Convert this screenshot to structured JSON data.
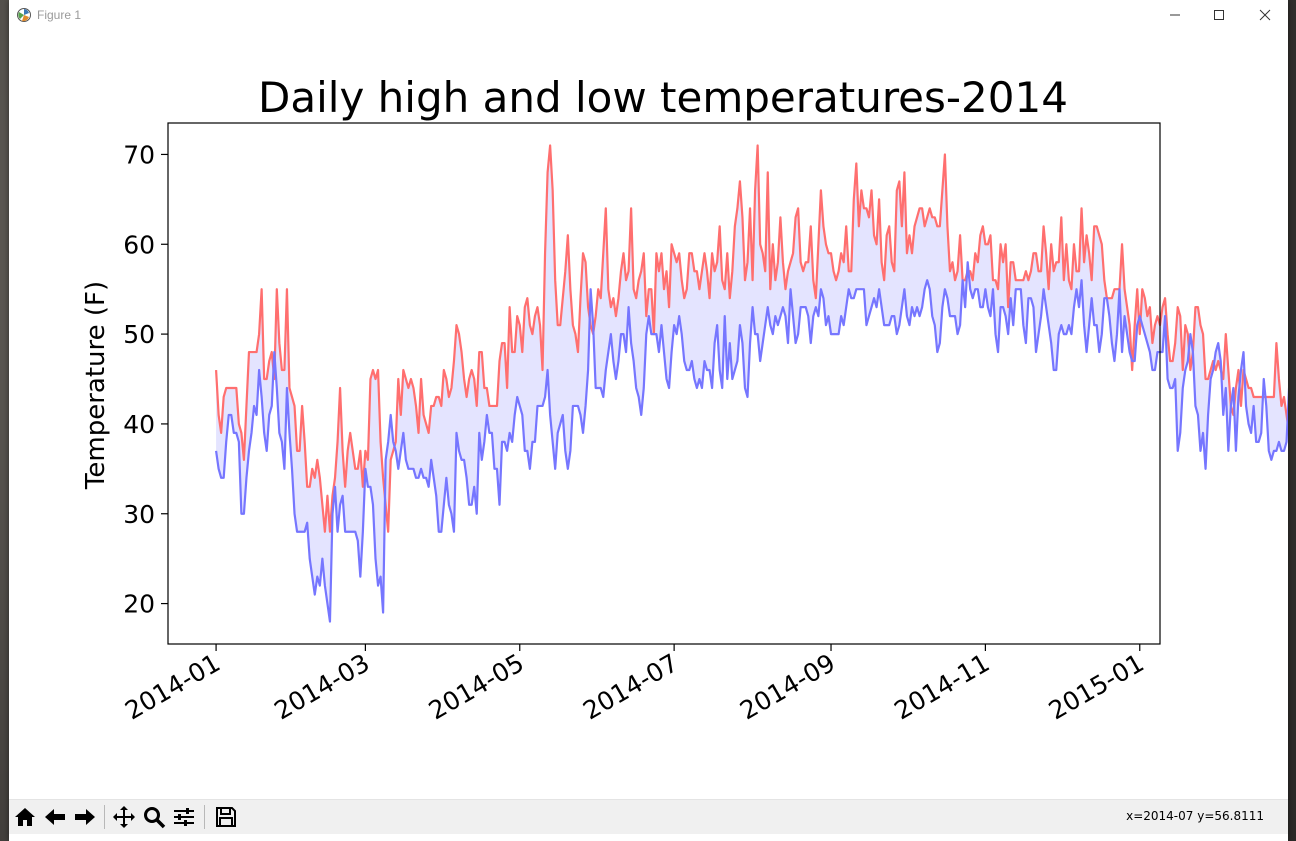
{
  "window": {
    "title": "Figure 1",
    "icons": [
      "app-icon",
      "minimize-icon",
      "maximize-icon",
      "close-icon"
    ]
  },
  "toolbar": {
    "buttons": [
      "home-icon",
      "back-icon",
      "forward-icon",
      "pan-icon",
      "zoom-icon",
      "configure-subplots-icon",
      "save-icon"
    ],
    "coords": "x=2014-07 y=56.8111"
  },
  "colors": {
    "high": "#ff6f6f",
    "low": "#7676ff",
    "fill": "#e4e4ff"
  },
  "chart_data": {
    "type": "line",
    "title": "Daily high and low temperatures-2014",
    "xlabel": "",
    "ylabel": "Temperature (F)",
    "x_tick_labels": [
      "2014-01",
      "2014-03",
      "2014-05",
      "2014-07",
      "2014-09",
      "2014-11",
      "2015-01"
    ],
    "y_ticks": [
      20,
      30,
      40,
      50,
      60,
      70
    ],
    "ylim": [
      15.5,
      73.5
    ],
    "xlim": [
      "2013-12-13",
      "2015-01-09"
    ],
    "grid": false,
    "fill_between": true,
    "series": [
      {
        "x_start": "2014-01-01",
        "values": [
          46,
          41,
          39,
          43,
          44,
          44,
          44,
          44,
          44,
          40,
          39,
          36,
          42,
          48,
          48,
          48,
          48,
          50,
          55,
          45,
          45,
          47,
          48,
          45,
          55,
          49,
          46,
          46,
          55,
          44,
          43,
          42,
          37,
          37,
          42,
          38,
          33,
          33,
          35,
          34,
          36,
          34,
          31,
          28,
          32,
          28,
          32,
          34,
          38,
          44,
          37,
          33,
          37,
          39,
          37,
          35,
          35,
          37,
          33,
          37,
          36,
          45,
          46,
          45,
          46,
          38,
          34,
          31,
          28,
          36,
          37,
          38,
          45,
          41,
          46,
          45,
          44,
          45,
          44,
          42,
          39,
          45,
          41,
          40,
          39,
          42,
          42,
          43,
          43,
          42,
          46,
          45,
          43,
          44,
          47,
          51,
          50,
          48,
          45,
          43,
          45,
          46,
          45,
          42,
          48,
          48,
          44,
          44,
          42,
          42,
          42,
          42,
          47,
          49,
          49,
          44,
          53,
          48,
          48,
          52,
          51,
          48,
          53,
          54,
          51,
          50,
          52,
          53,
          51,
          46,
          59,
          68,
          71,
          66,
          56,
          51,
          51,
          54,
          57,
          61,
          55,
          51,
          50,
          48,
          54,
          59,
          58,
          53,
          51,
          50,
          52,
          55,
          54,
          59,
          64,
          55,
          53,
          54,
          52,
          54,
          57,
          59,
          56,
          57,
          64,
          55,
          54,
          56,
          57,
          59,
          52,
          55,
          55,
          50,
          59,
          57,
          59,
          55,
          57,
          53,
          60,
          59,
          58,
          59,
          56,
          54,
          55,
          59,
          59,
          57,
          57,
          55,
          57,
          59,
          57,
          54,
          59,
          57,
          58,
          62,
          56,
          55,
          59,
          54,
          57,
          62,
          64,
          67,
          63,
          56,
          58,
          64,
          56,
          66,
          71,
          60,
          59,
          57,
          68,
          55,
          60,
          56,
          58,
          63,
          58,
          55,
          57,
          58,
          59,
          63,
          64,
          58,
          57,
          58,
          58,
          62,
          56,
          54,
          60,
          66,
          62,
          60,
          59,
          59,
          57,
          56,
          57,
          59,
          58,
          62,
          57,
          57,
          65,
          69,
          62,
          66,
          64,
          64,
          63,
          66,
          61,
          60,
          65,
          58,
          56,
          61,
          62,
          58,
          57,
          66,
          67,
          62,
          68,
          59,
          61,
          59,
          62,
          63,
          64,
          64,
          62,
          63,
          64,
          63,
          63,
          62,
          62,
          66,
          70,
          62,
          57,
          58,
          56,
          57,
          61,
          56,
          56,
          57,
          57,
          56,
          59,
          58,
          61,
          62,
          60,
          60,
          61,
          56,
          56,
          55,
          60,
          58,
          60,
          53,
          58,
          58,
          56,
          56,
          56,
          56,
          57,
          56,
          57,
          59,
          59,
          57,
          57,
          62,
          59,
          55,
          60,
          57,
          58,
          58,
          63,
          56,
          60,
          56,
          55,
          60,
          57,
          57,
          64,
          58,
          61,
          59,
          56,
          62,
          62,
          61,
          60,
          56,
          54,
          54,
          54,
          55,
          55,
          55,
          60,
          55,
          53,
          51,
          46,
          51,
          55,
          50,
          55,
          54,
          52,
          53,
          49,
          51,
          52,
          51,
          53,
          54,
          50,
          47,
          47,
          49,
          53,
          52,
          46,
          51,
          50,
          46,
          48,
          53,
          53,
          51,
          50,
          45,
          45,
          46,
          47,
          46,
          47,
          46,
          45,
          50,
          46,
          42,
          41,
          44,
          46,
          42,
          46,
          45,
          44,
          44,
          43,
          43,
          43,
          43,
          43,
          43,
          43,
          43,
          43,
          49,
          45,
          42,
          43,
          41,
          39,
          48,
          42,
          40,
          36,
          33,
          32,
          33,
          36,
          37,
          37,
          36,
          37,
          37,
          38,
          41,
          48,
          52,
          48,
          43,
          44,
          44,
          42,
          42,
          44,
          44,
          44,
          45,
          44,
          45,
          49,
          44,
          48,
          49,
          50,
          43,
          44,
          45,
          44,
          44,
          43,
          44,
          45,
          45,
          45,
          46,
          45,
          44,
          46,
          45,
          45,
          43,
          42,
          42,
          45
        ]
      },
      {
        "x_start": "2014-01-01",
        "values": [
          37,
          35,
          34,
          34,
          38,
          41,
          41,
          39,
          39,
          38,
          30,
          30,
          34,
          37,
          39,
          42,
          41,
          46,
          43,
          39,
          37,
          41,
          42,
          48,
          44,
          39,
          38,
          35,
          44,
          39,
          35,
          30,
          28,
          28,
          28,
          28,
          29,
          25,
          23,
          21,
          23,
          22,
          25,
          22,
          20,
          18,
          30,
          33,
          28,
          31,
          32,
          28,
          28,
          28,
          28,
          28,
          27,
          23,
          28,
          35,
          33,
          33,
          31,
          25,
          22,
          23,
          19,
          36,
          38,
          41,
          38,
          37,
          35,
          37,
          39,
          36,
          35,
          35,
          35,
          34,
          34,
          35,
          34,
          34,
          33,
          36,
          34,
          32,
          28,
          28,
          31,
          34,
          31,
          30,
          28,
          39,
          37,
          36,
          36,
          34,
          31,
          31,
          33,
          30,
          39,
          36,
          38,
          41,
          39,
          39,
          35,
          35,
          31,
          38,
          38,
          37,
          39,
          38,
          41,
          43,
          42,
          41,
          37,
          37,
          35,
          38,
          38,
          42,
          42,
          42,
          43,
          46,
          41,
          38,
          35,
          39,
          40,
          41,
          37,
          35,
          37,
          42,
          42,
          42,
          41,
          39,
          42,
          46,
          55,
          51,
          44,
          44,
          44,
          43,
          46,
          48,
          50,
          47,
          45,
          47,
          50,
          50,
          48,
          53,
          49,
          47,
          44,
          43,
          41,
          44,
          50,
          52,
          50,
          50,
          50,
          48,
          51,
          48,
          45,
          44,
          48,
          51,
          50,
          52,
          50,
          47,
          46,
          46,
          47,
          45,
          44,
          45,
          44,
          47,
          46,
          46,
          44,
          49,
          51,
          46,
          44,
          52,
          45,
          49,
          45,
          46,
          47,
          51,
          49,
          44,
          43,
          49,
          53,
          50,
          50,
          47,
          49,
          51,
          53,
          51,
          50,
          52,
          51,
          52,
          53,
          52,
          49,
          55,
          52,
          49,
          50,
          53,
          53,
          53,
          52,
          49,
          52,
          53,
          52,
          55,
          54,
          51,
          52,
          50,
          50,
          50,
          50,
          52,
          51,
          53,
          55,
          54,
          54,
          55,
          55,
          55,
          55,
          51,
          52,
          53,
          54,
          53,
          55,
          53,
          51,
          51,
          51,
          52,
          52,
          50,
          51,
          53,
          55,
          52,
          51,
          53,
          52,
          53,
          52,
          53,
          55,
          56,
          55,
          52,
          51,
          48,
          49,
          53,
          55,
          54,
          52,
          52,
          52,
          50,
          51,
          56,
          53,
          58,
          55,
          54,
          55,
          55,
          53,
          53,
          55,
          53,
          52,
          55,
          50,
          48,
          53,
          53,
          52,
          50,
          54,
          51,
          55,
          55,
          55,
          51,
          49,
          54,
          54,
          53,
          48,
          50,
          52,
          55,
          53,
          51,
          49,
          46,
          46,
          50,
          51,
          50,
          50,
          51,
          50,
          53,
          55,
          53,
          56,
          51,
          48,
          51,
          54,
          51,
          51,
          48,
          50,
          54,
          54,
          52,
          49,
          47,
          50,
          55,
          48,
          52,
          50,
          48,
          47,
          47,
          51,
          52,
          51,
          50,
          49,
          48,
          46,
          46,
          48,
          48,
          48,
          52,
          45,
          44,
          44,
          45,
          37,
          39,
          44,
          46,
          47,
          50,
          48,
          42,
          41,
          37,
          39,
          35,
          41,
          45,
          46,
          48,
          49,
          47,
          41,
          44,
          37,
          42,
          44,
          37,
          43,
          46,
          48,
          42,
          40,
          39,
          42,
          38,
          38,
          39,
          45,
          42,
          37,
          36,
          37,
          37,
          38,
          37,
          37,
          38,
          44,
          41,
          40,
          39,
          39,
          40,
          38,
          44,
          40,
          41,
          36,
          36,
          38,
          37,
          35,
          35,
          40,
          45,
          39,
          44,
          36,
          36,
          39,
          36,
          35,
          35,
          35,
          31,
          30,
          29,
          28,
          28,
          28,
          28,
          32,
          34,
          40,
          37,
          38,
          36,
          39,
          36,
          39,
          38,
          32,
          32,
          36,
          34,
          39,
          39,
          35,
          35,
          36,
          37,
          35,
          38,
          39,
          33,
          32,
          32,
          34,
          31,
          31,
          28,
          28,
          27,
          25,
          28,
          27,
          28,
          33,
          32,
          30,
          33,
          36,
          28,
          29,
          28,
          30,
          37,
          38,
          43,
          45,
          44,
          40,
          38,
          37,
          36,
          38,
          43,
          45,
          45,
          41,
          38,
          36,
          34,
          40,
          41,
          42,
          41,
          40,
          37,
          38,
          39
        ]
      }
    ]
  }
}
